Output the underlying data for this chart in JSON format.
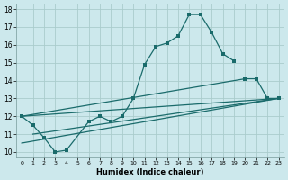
{
  "xlabel": "Humidex (Indice chaleur)",
  "bg_color": "#cce8ec",
  "grid_color": "#aacccc",
  "line_color": "#1a6b6b",
  "xlim": [
    -0.5,
    23.5
  ],
  "ylim": [
    9.7,
    18.3
  ],
  "xticks": [
    0,
    1,
    2,
    3,
    4,
    5,
    6,
    7,
    8,
    9,
    10,
    11,
    12,
    13,
    14,
    15,
    16,
    17,
    18,
    19,
    20,
    21,
    22,
    23
  ],
  "yticks": [
    10,
    11,
    12,
    13,
    14,
    15,
    16,
    17,
    18
  ],
  "line1_x": [
    0,
    1,
    2,
    3,
    4,
    6,
    7,
    8,
    9,
    10,
    11,
    12,
    13,
    14,
    15,
    16,
    17,
    18,
    19
  ],
  "line1_y": [
    12.0,
    11.5,
    10.8,
    10.0,
    10.1,
    11.7,
    12.0,
    11.7,
    12.0,
    13.0,
    14.9,
    15.9,
    16.1,
    16.5,
    17.7,
    17.7,
    16.7,
    15.5,
    15.1
  ],
  "line2_x": [
    0,
    20,
    21,
    22,
    23
  ],
  "line2_y": [
    12.0,
    14.1,
    14.1,
    13.0,
    13.0
  ],
  "line3_x": [
    1,
    23
  ],
  "line3_y": [
    11.0,
    13.0
  ],
  "line4_x": [
    0,
    23
  ],
  "line4_y": [
    10.5,
    13.0
  ]
}
